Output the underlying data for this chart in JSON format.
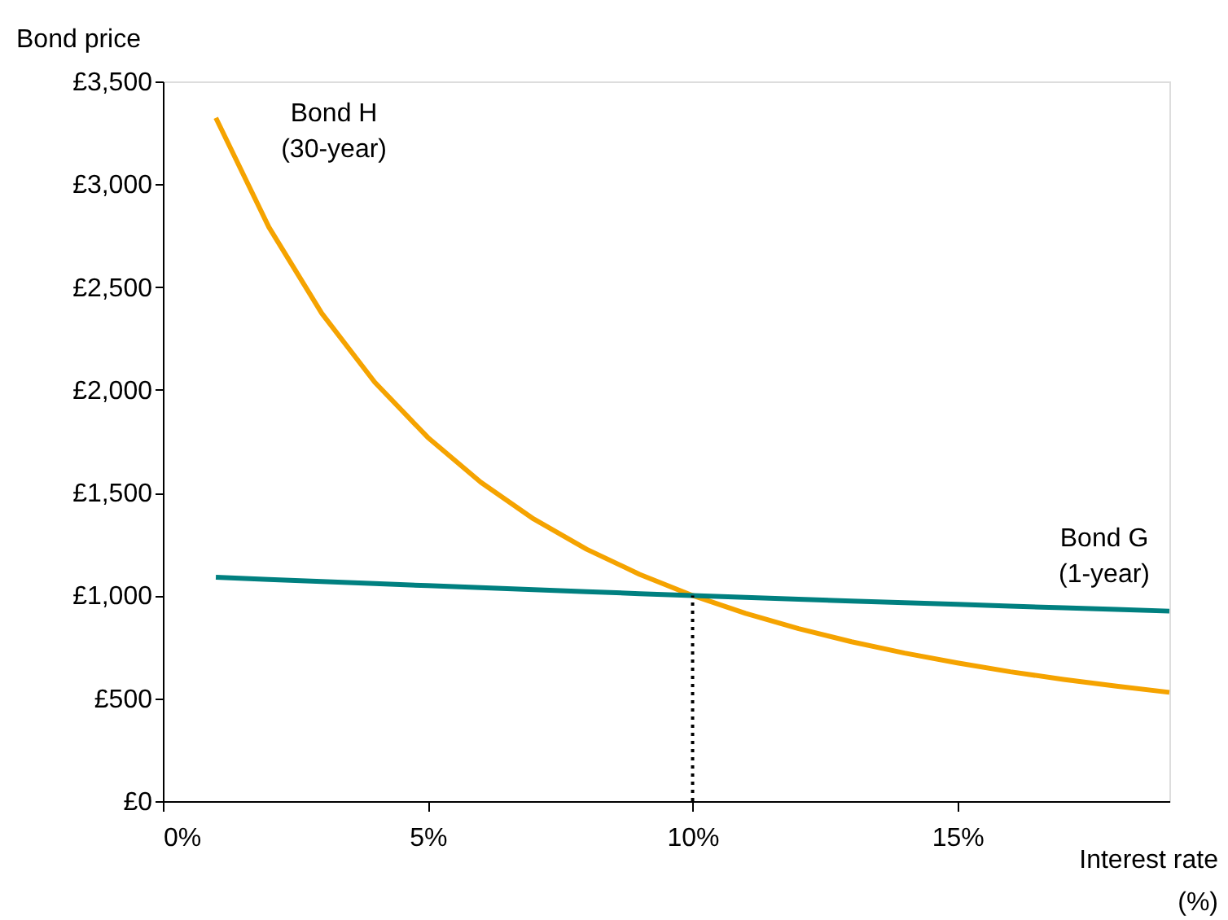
{
  "chart_data": {
    "type": "line",
    "xlabel": "Interest rate\n(%)",
    "ylabel": "Bond price",
    "x": [
      1,
      2,
      3,
      4,
      5,
      6,
      7,
      8,
      9,
      10,
      11,
      12,
      13,
      14,
      15,
      16,
      17,
      18,
      19
    ],
    "series": [
      {
        "name": "Bond H\n(30-year)",
        "color": "#f5a300",
        "values": [
          3323,
          2792,
          2372,
          2037,
          1769,
          1551,
          1372,
          1225,
          1103,
          1000,
          913,
          839,
          775,
          720,
          672,
          629,
          592,
          559,
          529
        ]
      },
      {
        "name": "Bond G\n(1-year)",
        "color": "#008080",
        "values": [
          1089,
          1078,
          1068,
          1058,
          1048,
          1038,
          1028,
          1019,
          1009,
          1000,
          991,
          982,
          973,
          965,
          957,
          948,
          940,
          932,
          924
        ]
      }
    ],
    "xlim": [
      0,
      19
    ],
    "xticks": [
      {
        "value": 0,
        "label": "0%"
      },
      {
        "value": 5,
        "label": "5%"
      },
      {
        "value": 10,
        "label": "10%"
      },
      {
        "value": 15,
        "label": "15%"
      }
    ],
    "ylim": [
      0,
      3500
    ],
    "yticks": [
      {
        "value": 0,
        "label": "£0"
      },
      {
        "value": 500,
        "label": "£500"
      },
      {
        "value": 1000,
        "label": "£1,000"
      },
      {
        "value": 1500,
        "label": "£1,500"
      },
      {
        "value": 2000,
        "label": "£2,000"
      },
      {
        "value": 2500,
        "label": "£2,500"
      },
      {
        "value": 3000,
        "label": "£3,000"
      },
      {
        "value": 3500,
        "label": "£3,500"
      }
    ],
    "ref_lines": [
      {
        "axis": "x",
        "value": 10,
        "color": "#000000",
        "line_style": "dotted"
      }
    ],
    "grid": false,
    "marker": "none",
    "line_style": "solid"
  }
}
